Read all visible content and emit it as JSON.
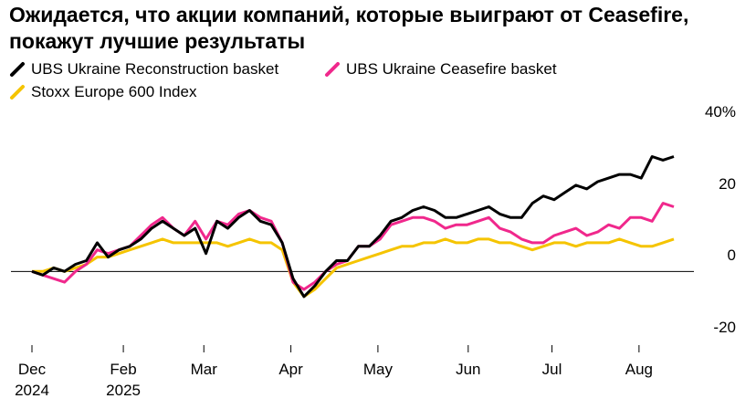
{
  "chart_data": {
    "type": "line",
    "title": "Ожидается, что акции компаний, которые выиграют от Ceasefire, покажут лучшие результаты",
    "series": [
      {
        "name": "UBS Ukraine Reconstruction basket",
        "color": "#000000",
        "values": [
          0,
          -1,
          1,
          0,
          2,
          3,
          8,
          4,
          6,
          7,
          9,
          12,
          14,
          12,
          10,
          12,
          5,
          14,
          12,
          15,
          17,
          14,
          13,
          8,
          -2,
          -7,
          -4,
          0,
          3,
          3,
          7,
          7,
          10,
          14,
          15,
          17,
          18,
          17,
          15,
          15,
          16,
          17,
          18,
          16,
          15,
          15,
          19,
          21,
          20,
          22,
          24,
          23,
          25,
          26,
          27,
          27,
          26,
          32,
          31,
          32
        ]
      },
      {
        "name": "UBS Ukraine Ceasefire basket",
        "color": "#f0288c",
        "values": [
          0,
          -1,
          -2,
          -3,
          0,
          2,
          6,
          5,
          6,
          7,
          10,
          13,
          15,
          12,
          10,
          14,
          9,
          14,
          13,
          16,
          17,
          15,
          14,
          8,
          -3,
          -5,
          -3,
          0,
          2,
          3,
          7,
          7,
          9,
          13,
          14,
          15,
          15,
          14,
          12,
          13,
          13,
          14,
          15,
          12,
          11,
          9,
          8,
          8,
          10,
          11,
          12,
          10,
          11,
          13,
          12,
          15,
          15,
          14,
          19,
          18
        ]
      },
      {
        "name": "Stoxx Europe 600 Index",
        "color": "#f5c400",
        "values": [
          0,
          0,
          1,
          0,
          1,
          2,
          4,
          4,
          5,
          6,
          7,
          8,
          9,
          8,
          8,
          8,
          8,
          8,
          7,
          8,
          9,
          8,
          8,
          6,
          -3,
          -7,
          -5,
          -2,
          1,
          2,
          3,
          4,
          5,
          6,
          7,
          7,
          8,
          8,
          9,
          8,
          8,
          9,
          9,
          8,
          8,
          7,
          6,
          7,
          8,
          8,
          7,
          8,
          8,
          8,
          9,
          8,
          7,
          7,
          8,
          9
        ]
      }
    ],
    "xlim": [
      0,
      59
    ],
    "xticks": [
      {
        "value": 0,
        "label": "Dec\n2024"
      },
      {
        "value": 8.4,
        "label": "Feb\n2025"
      },
      {
        "value": 15.8,
        "label": "Mar"
      },
      {
        "value": 23.8,
        "label": "Apr"
      },
      {
        "value": 31.8,
        "label": "May"
      },
      {
        "value": 40.1,
        "label": "Jun"
      },
      {
        "value": 47.8,
        "label": "Jul"
      },
      {
        "value": 55.8,
        "label": "Aug"
      }
    ],
    "ylim": [
      -20,
      40
    ],
    "yticks": [
      {
        "value": 40,
        "label": "40%"
      },
      20,
      0,
      -20
    ],
    "zero_line": true
  }
}
